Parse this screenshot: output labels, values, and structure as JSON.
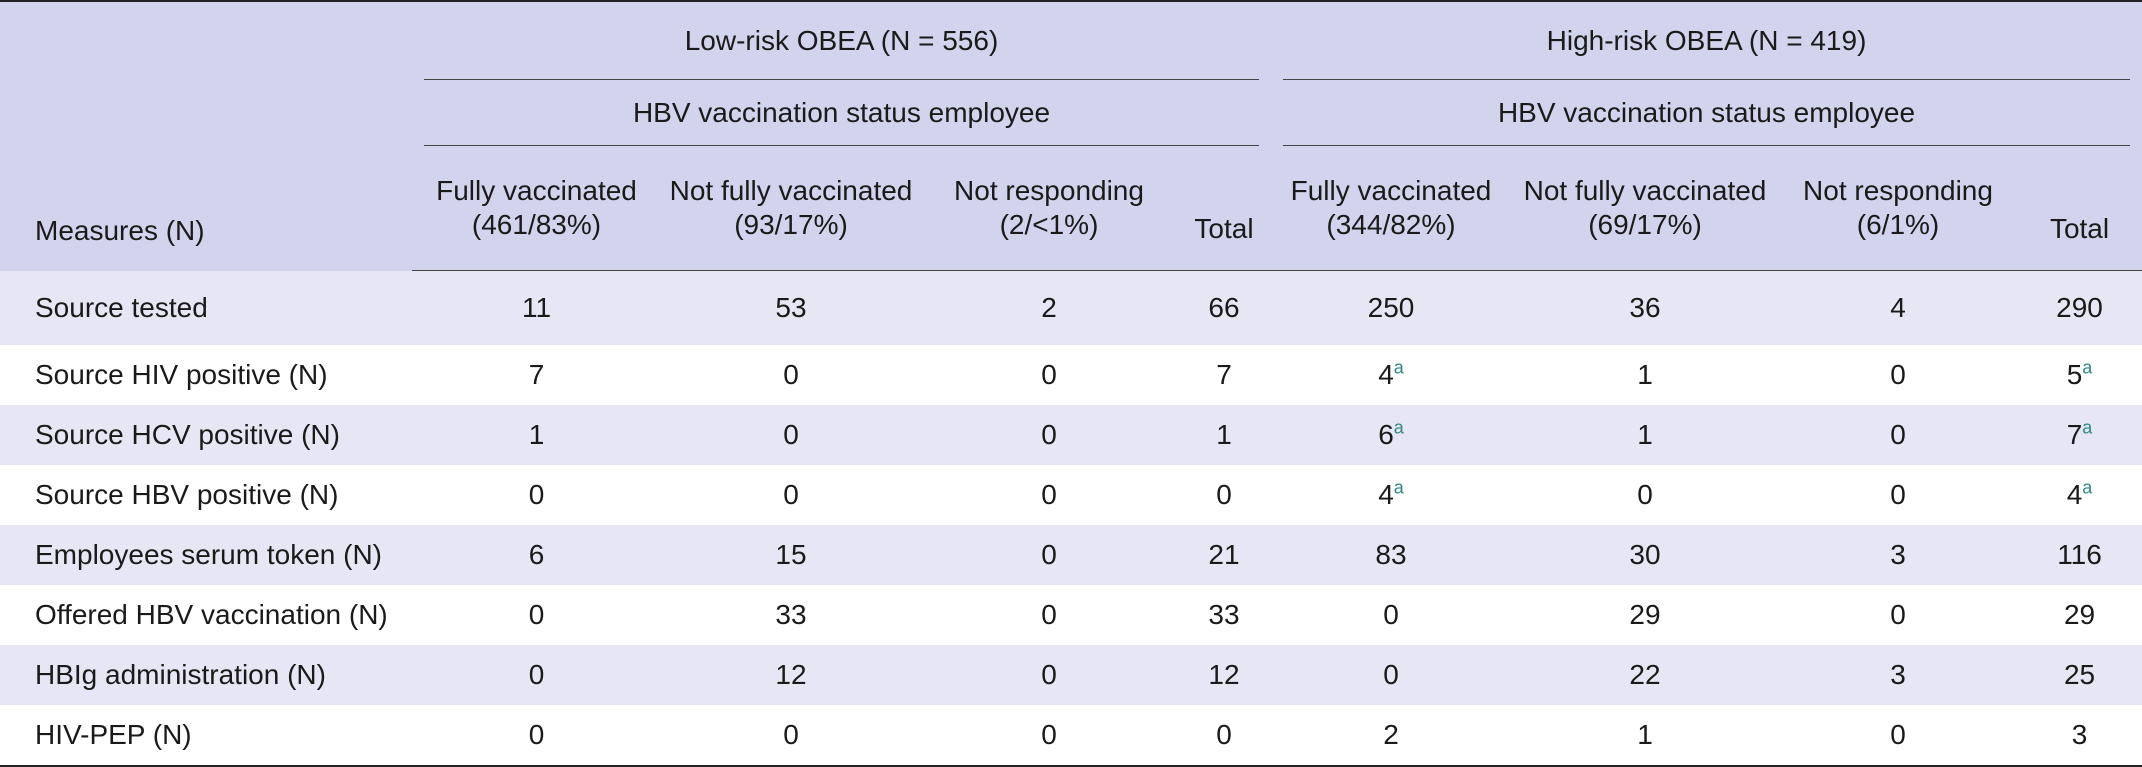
{
  "header": {
    "low_group": "Low-risk OBEA (N = 556)",
    "high_group": "High-risk OBEA (N = 419)",
    "low_sub": "HBV vaccination status employee",
    "high_sub": "HBV vaccination status employee",
    "measures": "Measures (N)",
    "low_cols": [
      {
        "l1": "Fully vaccinated",
        "l2": "(461/83%)"
      },
      {
        "l1": "Not fully vaccinated",
        "l2": "(93/17%)"
      },
      {
        "l1": "Not responding",
        "l2": "(2/<1%)"
      },
      {
        "l1": "Total",
        "l2": ""
      }
    ],
    "high_cols": [
      {
        "l1": "Fully vaccinated",
        "l2": "(344/82%)"
      },
      {
        "l1": "Not fully vaccinated",
        "l2": "(69/17%)"
      },
      {
        "l1": "Not responding",
        "l2": "(6/1%)"
      },
      {
        "l1": "Total",
        "l2": ""
      }
    ]
  },
  "rows": [
    {
      "label": "Source tested",
      "v": [
        "11",
        "53",
        "2",
        "66",
        "250",
        "36",
        "4",
        "290"
      ],
      "sup": [
        "",
        "",
        "",
        "",
        "",
        "",
        "",
        ""
      ]
    },
    {
      "label": "Source HIV positive (N)",
      "v": [
        "7",
        "0",
        "0",
        "7",
        "4",
        "1",
        "0",
        "5"
      ],
      "sup": [
        "",
        "",
        "",
        "",
        "a",
        "",
        "",
        "a"
      ]
    },
    {
      "label": "Source HCV positive (N)",
      "v": [
        "1",
        "0",
        "0",
        "1",
        "6",
        "1",
        "0",
        "7"
      ],
      "sup": [
        "",
        "",
        "",
        "",
        "a",
        "",
        "",
        "a"
      ]
    },
    {
      "label": "Source HBV positive (N)",
      "v": [
        "0",
        "0",
        "0",
        "0",
        "4",
        "0",
        "0",
        "4"
      ],
      "sup": [
        "",
        "",
        "",
        "",
        "a",
        "",
        "",
        "a"
      ]
    },
    {
      "label": "Employees serum token (N)",
      "v": [
        "6",
        "15",
        "0",
        "21",
        "83",
        "30",
        "3",
        "116"
      ],
      "sup": [
        "",
        "",
        "",
        "",
        "",
        "",
        "",
        ""
      ]
    },
    {
      "label": "Offered HBV vaccination (N)",
      "v": [
        "0",
        "33",
        "0",
        "33",
        "0",
        "29",
        "0",
        "29"
      ],
      "sup": [
        "",
        "",
        "",
        "",
        "",
        "",
        "",
        ""
      ]
    },
    {
      "label": "HBIg administration (N)",
      "v": [
        "0",
        "12",
        "0",
        "12",
        "0",
        "22",
        "3",
        "25"
      ],
      "sup": [
        "",
        "",
        "",
        "",
        "",
        "",
        "",
        ""
      ]
    },
    {
      "label": "HIV-PEP (N)",
      "v": [
        "0",
        "0",
        "0",
        "0",
        "2",
        "1",
        "0",
        "3"
      ],
      "sup": [
        "",
        "",
        "",
        "",
        "",
        "",
        "",
        ""
      ]
    }
  ]
}
